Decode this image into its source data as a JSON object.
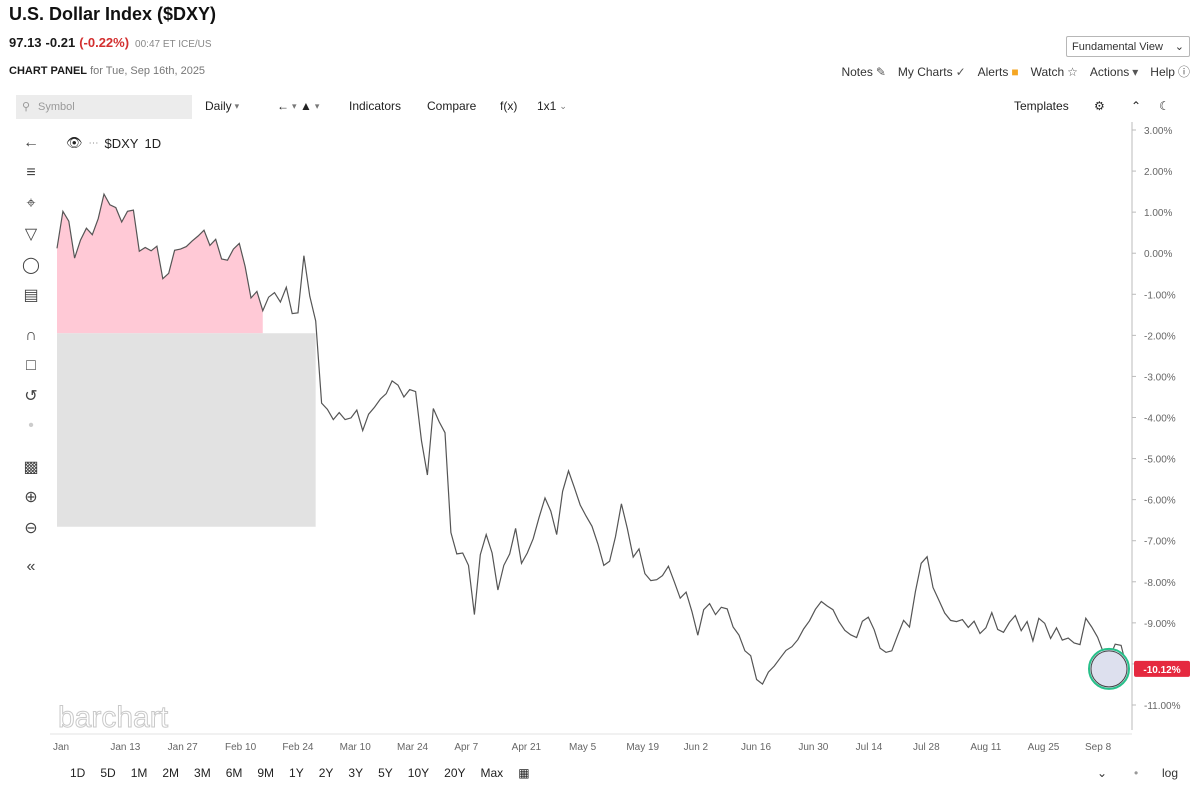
{
  "header": {
    "title": "U.S. Dollar Index ($DXY)",
    "last": "97.13",
    "change": "-0.21",
    "pct_change": "(-0.22%)",
    "meta": "00:47 ET ICE/US",
    "fundamental_btn": "Fundamental View",
    "panel_label": "CHART PANEL",
    "panel_date": "for Tue, Sep 16th, 2025",
    "links": {
      "notes": "Notes",
      "my_charts": "My Charts",
      "alerts": "Alerts",
      "watch": "Watch",
      "actions": "Actions",
      "help": "Help"
    }
  },
  "toolbar": {
    "symbol_placeholder": "Symbol",
    "interval": "Daily",
    "indicators": "Indicators",
    "compare": "Compare",
    "fx": "f(x)",
    "layout": "1x1",
    "templates": "Templates"
  },
  "legend": {
    "symbol": "$DXY",
    "period": "1D"
  },
  "watermark": "barchart",
  "ranges": [
    "1D",
    "5D",
    "1M",
    "2M",
    "3M",
    "6M",
    "9M",
    "1Y",
    "2Y",
    "3Y",
    "5Y",
    "10Y",
    "20Y",
    "Max"
  ],
  "bottom_right": {
    "log": "log"
  },
  "colors": {
    "line": "#555555",
    "fill_above": "#ffc9d6",
    "fill_below": "#e2e2e2",
    "current_badge": "#e5293f",
    "marker_ring": "#27c08a"
  },
  "chart_data": {
    "type": "area",
    "title": "",
    "xlabel": "",
    "ylabel": "",
    "ylim": [
      -11.5,
      3.5
    ],
    "y_unit": "%",
    "y_ticks": [
      3,
      2,
      1,
      0,
      -1,
      -2,
      -3,
      -4,
      -5,
      -6,
      -7,
      -8,
      -9,
      -10,
      -11
    ],
    "y_tick_labels": [
      "3.00%",
      "2.00%",
      "1.00%",
      "0.00%",
      "-1.00%",
      "-2.00%",
      "-3.00%",
      "-4.00%",
      "-5.00%",
      "-6.00%",
      "-7.00%",
      "-8.00%",
      "-9.00%",
      "-10.00%",
      "-11.00%"
    ],
    "x_tick_labels": [
      "Jan",
      "Jan 13",
      "Jan 27",
      "Feb 10",
      "Feb 24",
      "Mar 10",
      "Mar 24",
      "Apr 7",
      "Apr 21",
      "May 5",
      "May 19",
      "Jun 2",
      "Jun 16",
      "Jun 30",
      "Jul 14",
      "Jul 28",
      "Aug 11",
      "Aug 25",
      "Sep 8"
    ],
    "current_value_label": "-10.12%",
    "series": [
      {
        "values": [
          0.12,
          1.02,
          0.78,
          -0.12,
          0.32,
          0.61,
          0.45,
          0.84,
          1.44,
          1.18,
          1.11,
          0.76,
          1.02,
          1.05,
          0.05,
          0.14,
          0.06,
          0.17,
          -0.62,
          -0.49,
          0.07,
          0.1,
          0.16,
          0.3,
          0.42,
          0.56,
          0.19,
          0.34,
          -0.14,
          -0.17,
          0.1,
          0.24,
          -0.32,
          -1.09,
          -0.93,
          -1.4,
          -1.07,
          -0.96,
          -1.19,
          -0.83,
          -1.47,
          -1.45,
          -0.06,
          -1.05,
          -1.65,
          -3.65,
          -3.8,
          -4.05,
          -3.88,
          -4.05,
          -4.01,
          -3.82,
          -4.32,
          -3.92,
          -3.75,
          -3.55,
          -3.42,
          -3.11,
          -3.21,
          -3.5,
          -3.32,
          -3.37,
          -4.57,
          -5.4,
          -3.78,
          -4.1,
          -4.37,
          -6.8,
          -7.32,
          -7.3,
          -7.6,
          -8.8,
          -7.34,
          -6.85,
          -7.3,
          -8.2,
          -7.6,
          -7.32,
          -6.7,
          -7.55,
          -7.3,
          -6.95,
          -6.43,
          -5.96,
          -6.28,
          -6.85,
          -5.8,
          -5.3,
          -5.71,
          -6.13,
          -6.4,
          -6.65,
          -7.08,
          -7.6,
          -7.5,
          -6.9,
          -6.1,
          -6.7,
          -7.4,
          -7.2,
          -7.8,
          -7.97,
          -7.95,
          -7.85,
          -7.62,
          -8.0,
          -8.4,
          -8.25,
          -8.72,
          -9.3,
          -8.68,
          -8.53,
          -8.8,
          -8.62,
          -8.66,
          -9.1,
          -9.3,
          -9.68,
          -9.8,
          -10.38,
          -10.49,
          -10.2,
          -10.05,
          -9.86,
          -9.67,
          -9.58,
          -9.41,
          -9.15,
          -8.95,
          -8.67,
          -8.48,
          -8.59,
          -8.68,
          -8.97,
          -9.18,
          -9.29,
          -9.36,
          -8.96,
          -8.86,
          -9.17,
          -9.62,
          -9.72,
          -9.68,
          -9.3,
          -8.94,
          -9.1,
          -8.24,
          -7.55,
          -7.39,
          -8.14,
          -8.45,
          -8.76,
          -8.94,
          -8.97,
          -8.92,
          -9.11,
          -8.96,
          -9.26,
          -9.12,
          -8.75,
          -9.16,
          -9.23,
          -8.99,
          -8.82,
          -9.19,
          -8.97,
          -9.44,
          -8.89,
          -9.01,
          -9.38,
          -9.12,
          -9.42,
          -9.37,
          -9.49,
          -9.53,
          -8.89,
          -9.1,
          -9.35,
          -9.73,
          -9.86,
          -9.52,
          -9.55,
          -10.12
        ]
      }
    ],
    "baseline_reference": -1.95,
    "secondary_baseline": -6.66,
    "grid": false,
    "legend_position": "top-left"
  }
}
